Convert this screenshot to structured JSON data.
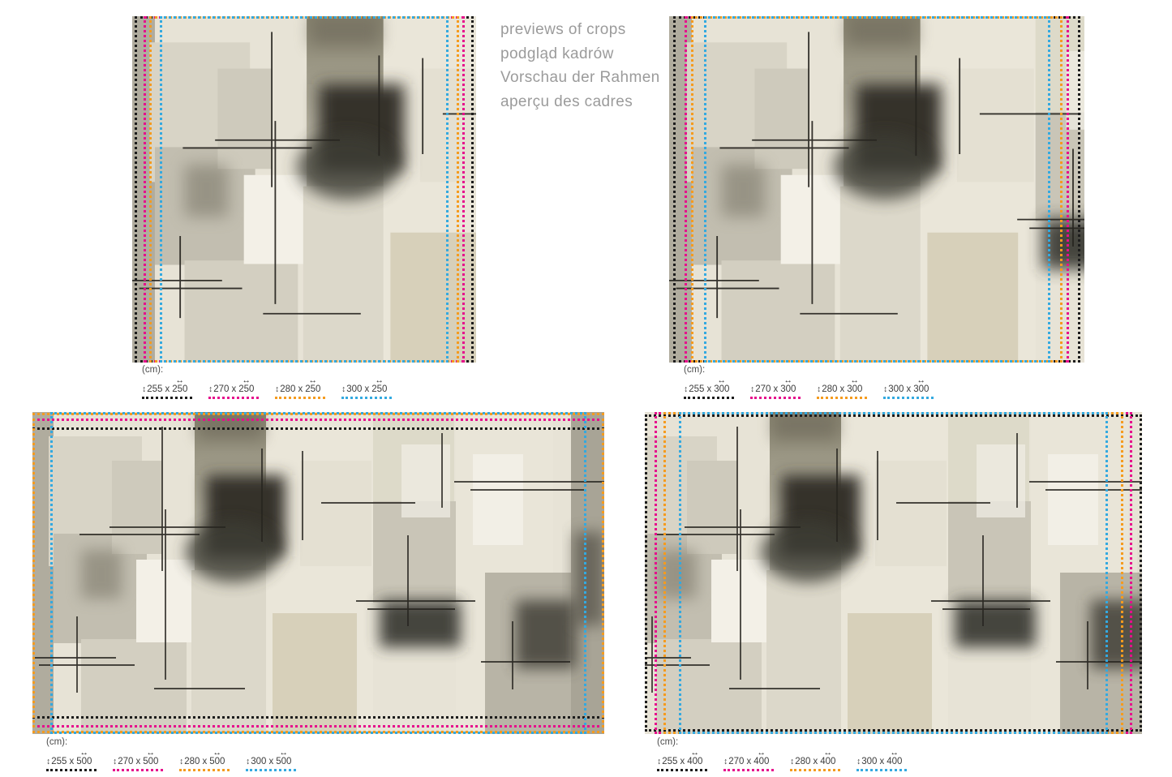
{
  "header": {
    "lines": [
      "previews of crops",
      "podgląd kadrów",
      "Vorschau der Rahmen",
      "aperçu des cadres"
    ]
  },
  "legend_unit": "(cm):",
  "size_separator": "x",
  "icons": {
    "vertical_arrow": "↕",
    "horizontal_arrow": "↔"
  },
  "crop_colors": {
    "black": "#1c1c1c",
    "magenta": "#e60e8c",
    "orange": "#f59b1e",
    "blue": "#33a9e0"
  },
  "panels": [
    {
      "position": "top-left",
      "crops": [
        {
          "label": "255 x 250",
          "height_cm": 255,
          "width_cm": 250,
          "color_name": "black",
          "color": "#1c1c1c"
        },
        {
          "label": "270 x 250",
          "height_cm": 270,
          "width_cm": 250,
          "color_name": "magenta",
          "color": "#e60e8c"
        },
        {
          "label": "280 x 250",
          "height_cm": 280,
          "width_cm": 250,
          "color_name": "orange",
          "color": "#f59b1e"
        },
        {
          "label": "300 x 250",
          "height_cm": 300,
          "width_cm": 250,
          "color_name": "blue",
          "color": "#33a9e0"
        }
      ]
    },
    {
      "position": "top-right",
      "crops": [
        {
          "label": "255 x 300",
          "height_cm": 255,
          "width_cm": 300,
          "color_name": "black",
          "color": "#1c1c1c"
        },
        {
          "label": "270 x 300",
          "height_cm": 270,
          "width_cm": 300,
          "color_name": "magenta",
          "color": "#e60e8c"
        },
        {
          "label": "280 x 300",
          "height_cm": 280,
          "width_cm": 300,
          "color_name": "orange",
          "color": "#f59b1e"
        },
        {
          "label": "300 x 300",
          "height_cm": 300,
          "width_cm": 300,
          "color_name": "blue",
          "color": "#33a9e0"
        }
      ]
    },
    {
      "position": "bottom-left",
      "crops": [
        {
          "label": "255 x 500",
          "height_cm": 255,
          "width_cm": 500,
          "color_name": "black",
          "color": "#1c1c1c"
        },
        {
          "label": "270 x 500",
          "height_cm": 270,
          "width_cm": 500,
          "color_name": "magenta",
          "color": "#e60e8c"
        },
        {
          "label": "280 x 500",
          "height_cm": 280,
          "width_cm": 500,
          "color_name": "orange",
          "color": "#f59b1e"
        },
        {
          "label": "300 x 500",
          "height_cm": 300,
          "width_cm": 500,
          "color_name": "blue",
          "color": "#33a9e0"
        }
      ]
    },
    {
      "position": "bottom-right",
      "crops": [
        {
          "label": "255 x 400",
          "height_cm": 255,
          "width_cm": 400,
          "color_name": "black",
          "color": "#1c1c1c"
        },
        {
          "label": "270 x 400",
          "height_cm": 270,
          "width_cm": 400,
          "color_name": "magenta",
          "color": "#e60e8c"
        },
        {
          "label": "280 x 400",
          "height_cm": 280,
          "width_cm": 400,
          "color_name": "orange",
          "color": "#f59b1e"
        },
        {
          "label": "300 x 400",
          "height_cm": 300,
          "width_cm": 400,
          "color_name": "blue",
          "color": "#33a9e0"
        }
      ]
    }
  ]
}
